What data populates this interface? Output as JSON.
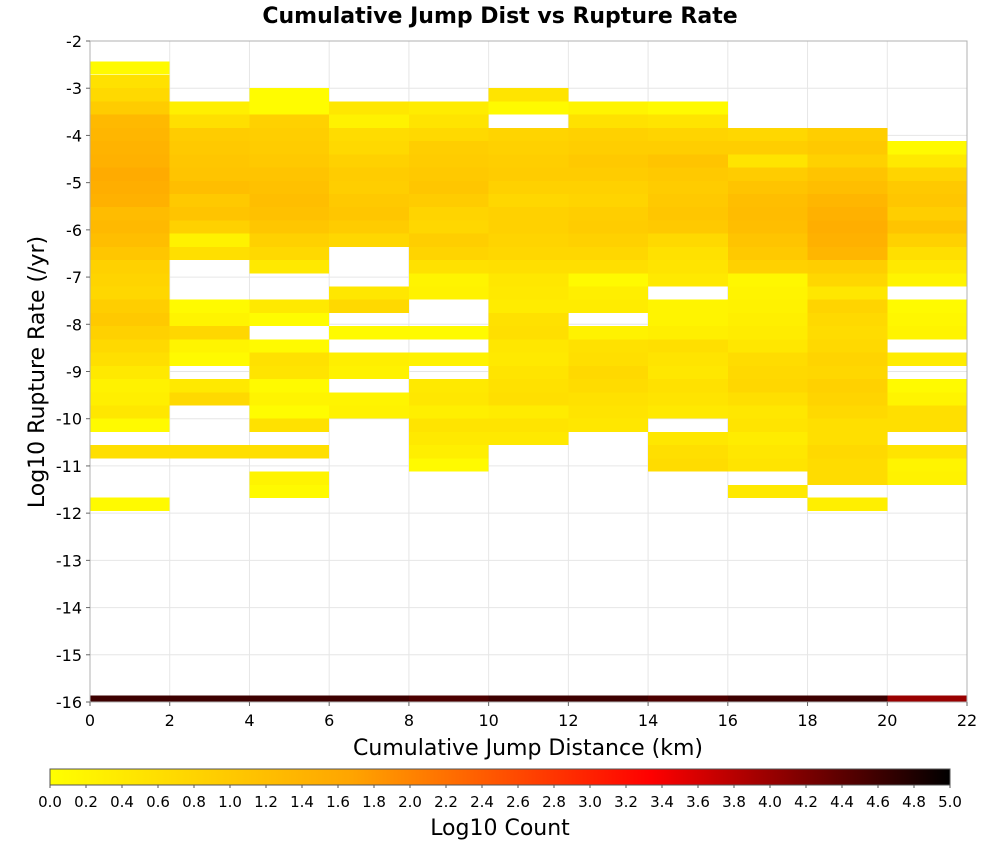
{
  "chart_data": {
    "type": "heatmap",
    "title": "Cumulative Jump Dist vs Rupture Rate",
    "xlabel": "Cumulative Jump Distance (km)",
    "ylabel": "Log10 Rupture Rate (/yr)",
    "xlim": [
      0,
      22
    ],
    "ylim": [
      -16,
      -2
    ],
    "x_ticks": [
      "0",
      "2",
      "4",
      "6",
      "8",
      "10",
      "12",
      "14",
      "16",
      "18",
      "20",
      "22"
    ],
    "y_ticks": [
      "-16",
      "-15",
      "-14",
      "-13",
      "-12",
      "-11",
      "-10",
      "-9",
      "-8",
      "-7",
      "-6",
      "-5",
      "-4",
      "-3",
      "-2"
    ],
    "x_bin_width": 2,
    "y_bin_width": 0.28,
    "grid": true,
    "colorbar": {
      "label": "Log10 Count",
      "min": 0.0,
      "max": 5.0,
      "ticks": [
        "0.0",
        "0.2",
        "0.4",
        "0.6",
        "0.8",
        "1.0",
        "1.2",
        "1.4",
        "1.6",
        "1.8",
        "2.0",
        "2.2",
        "2.4",
        "2.6",
        "2.8",
        "3.0",
        "3.2",
        "3.4",
        "3.6",
        "3.8",
        "4.0",
        "4.2",
        "4.4",
        "4.6",
        "4.8",
        "5.0"
      ],
      "colors": [
        "#ffff00",
        "#ffa500",
        "#ff0000",
        "#000000"
      ]
    },
    "columns": [
      {
        "x0": 0,
        "cells": [
          [
            -2.57,
            0.1
          ],
          [
            -2.86,
            0.55
          ],
          [
            -3.14,
            0.7
          ],
          [
            -3.42,
            0.95
          ],
          [
            -3.7,
            1.3
          ],
          [
            -3.98,
            1.35
          ],
          [
            -4.26,
            1.4
          ],
          [
            -4.54,
            1.45
          ],
          [
            -4.82,
            1.55
          ],
          [
            -5.1,
            1.5
          ],
          [
            -5.38,
            1.45
          ],
          [
            -5.66,
            1.25
          ],
          [
            -5.94,
            1.3
          ],
          [
            -6.22,
            1.2
          ],
          [
            -6.5,
            1.05
          ],
          [
            -6.78,
            0.85
          ],
          [
            -7.06,
            0.8
          ],
          [
            -7.34,
            0.75
          ],
          [
            -7.62,
            0.9
          ],
          [
            -7.9,
            1.0
          ],
          [
            -8.18,
            0.85
          ],
          [
            -8.46,
            0.7
          ],
          [
            -8.74,
            0.6
          ],
          [
            -9.02,
            0.4
          ],
          [
            -9.3,
            0.25
          ],
          [
            -9.58,
            0.3
          ],
          [
            -9.86,
            0.45
          ],
          [
            -10.14,
            0.1
          ],
          [
            -10.7,
            0.6
          ],
          [
            -11.81,
            0.1
          ]
        ]
      },
      {
        "x0": 2,
        "cells": [
          [
            -3.42,
            0.3
          ],
          [
            -3.7,
            0.6
          ],
          [
            -3.98,
            0.95
          ],
          [
            -4.26,
            1.0
          ],
          [
            -4.54,
            1.05
          ],
          [
            -4.82,
            1.1
          ],
          [
            -5.1,
            1.2
          ],
          [
            -5.38,
            1.0
          ],
          [
            -5.66,
            1.1
          ],
          [
            -5.94,
            0.85
          ],
          [
            -6.22,
            0.25
          ],
          [
            -6.5,
            0.6
          ],
          [
            -7.62,
            0.1
          ],
          [
            -7.9,
            0.2
          ],
          [
            -8.18,
            0.75
          ],
          [
            -8.46,
            0.2
          ],
          [
            -8.74,
            0.1
          ],
          [
            -9.3,
            0.4
          ],
          [
            -9.58,
            0.7
          ],
          [
            -10.7,
            0.6
          ]
        ]
      },
      {
        "x0": 4,
        "cells": [
          [
            -3.14,
            0.05
          ],
          [
            -3.42,
            0.05
          ],
          [
            -3.7,
            0.85
          ],
          [
            -3.98,
            0.9
          ],
          [
            -4.26,
            0.95
          ],
          [
            -4.54,
            1.0
          ],
          [
            -4.82,
            1.1
          ],
          [
            -5.1,
            1.15
          ],
          [
            -5.38,
            1.2
          ],
          [
            -5.66,
            1.15
          ],
          [
            -5.94,
            1.05
          ],
          [
            -6.22,
            0.85
          ],
          [
            -6.5,
            0.7
          ],
          [
            -6.78,
            0.4
          ],
          [
            -7.62,
            0.4
          ],
          [
            -7.9,
            0.05
          ],
          [
            -8.46,
            0.1
          ],
          [
            -8.74,
            0.55
          ],
          [
            -9.02,
            0.5
          ],
          [
            -9.3,
            0.1
          ],
          [
            -9.58,
            0.2
          ],
          [
            -9.86,
            0.05
          ],
          [
            -10.14,
            0.55
          ],
          [
            -10.7,
            0.6
          ],
          [
            -11.26,
            0.2
          ],
          [
            -11.54,
            0.1
          ]
        ]
      },
      {
        "x0": 6,
        "cells": [
          [
            -3.42,
            0.45
          ],
          [
            -3.7,
            0.25
          ],
          [
            -3.98,
            0.65
          ],
          [
            -4.26,
            0.7
          ],
          [
            -4.54,
            0.85
          ],
          [
            -4.82,
            0.95
          ],
          [
            -5.1,
            0.9
          ],
          [
            -5.38,
            1.0
          ],
          [
            -5.66,
            1.05
          ],
          [
            -5.94,
            0.95
          ],
          [
            -6.22,
            0.75
          ],
          [
            -7.34,
            0.45
          ],
          [
            -7.62,
            0.7
          ],
          [
            -8.18,
            0.1
          ],
          [
            -8.74,
            0.3
          ],
          [
            -9.02,
            0.25
          ],
          [
            -9.58,
            0.2
          ],
          [
            -9.86,
            0.25
          ]
        ]
      },
      {
        "x0": 8,
        "cells": [
          [
            -3.42,
            0.35
          ],
          [
            -3.7,
            0.5
          ],
          [
            -3.98,
            0.7
          ],
          [
            -4.26,
            0.9
          ],
          [
            -4.54,
            0.95
          ],
          [
            -4.82,
            1.0
          ],
          [
            -5.1,
            1.05
          ],
          [
            -5.38,
            0.95
          ],
          [
            -5.66,
            0.8
          ],
          [
            -5.94,
            0.75
          ],
          [
            -6.22,
            0.9
          ],
          [
            -6.5,
            0.8
          ],
          [
            -6.78,
            0.55
          ],
          [
            -7.06,
            0.2
          ],
          [
            -7.34,
            0.25
          ],
          [
            -8.18,
            0.1
          ],
          [
            -8.74,
            0.25
          ],
          [
            -9.3,
            0.4
          ],
          [
            -9.58,
            0.45
          ],
          [
            -9.86,
            0.3
          ],
          [
            -10.14,
            0.5
          ],
          [
            -10.42,
            0.4
          ],
          [
            -10.7,
            0.3
          ],
          [
            -10.98,
            0.1
          ]
        ]
      },
      {
        "x0": 10,
        "cells": [
          [
            -3.14,
            0.5
          ],
          [
            -3.42,
            0.1
          ],
          [
            -3.98,
            0.8
          ],
          [
            -4.26,
            0.85
          ],
          [
            -4.54,
            0.9
          ],
          [
            -4.82,
            0.95
          ],
          [
            -5.1,
            0.85
          ],
          [
            -5.38,
            0.75
          ],
          [
            -5.66,
            0.85
          ],
          [
            -5.94,
            0.85
          ],
          [
            -6.22,
            0.8
          ],
          [
            -6.5,
            0.75
          ],
          [
            -6.78,
            0.6
          ],
          [
            -7.06,
            0.45
          ],
          [
            -7.34,
            0.4
          ],
          [
            -7.62,
            0.35
          ],
          [
            -7.9,
            0.55
          ],
          [
            -8.18,
            0.6
          ],
          [
            -8.46,
            0.45
          ],
          [
            -8.74,
            0.4
          ],
          [
            -9.02,
            0.5
          ],
          [
            -9.3,
            0.55
          ],
          [
            -9.58,
            0.6
          ],
          [
            -9.86,
            0.35
          ],
          [
            -10.14,
            0.5
          ],
          [
            -10.42,
            0.4
          ]
        ]
      },
      {
        "x0": 12,
        "cells": [
          [
            -3.42,
            0.2
          ],
          [
            -3.7,
            0.55
          ],
          [
            -3.98,
            0.85
          ],
          [
            -4.26,
            0.9
          ],
          [
            -4.54,
            1.0
          ],
          [
            -4.82,
            0.95
          ],
          [
            -5.1,
            0.85
          ],
          [
            -5.38,
            0.8
          ],
          [
            -5.66,
            0.9
          ],
          [
            -5.94,
            0.95
          ],
          [
            -6.22,
            0.85
          ],
          [
            -6.5,
            0.75
          ],
          [
            -6.78,
            0.6
          ],
          [
            -7.06,
            0.1
          ],
          [
            -7.34,
            0.3
          ],
          [
            -7.62,
            0.35
          ],
          [
            -8.18,
            0.25
          ],
          [
            -8.46,
            0.55
          ],
          [
            -8.74,
            0.6
          ],
          [
            -9.02,
            0.7
          ],
          [
            -9.3,
            0.65
          ],
          [
            -9.58,
            0.55
          ],
          [
            -9.86,
            0.5
          ],
          [
            -10.14,
            0.45
          ]
        ]
      },
      {
        "x0": 14,
        "cells": [
          [
            -3.42,
            0.1
          ],
          [
            -3.7,
            0.5
          ],
          [
            -3.98,
            0.8
          ],
          [
            -4.26,
            0.9
          ],
          [
            -4.54,
            1.1
          ],
          [
            -4.82,
            1.0
          ],
          [
            -5.1,
            0.95
          ],
          [
            -5.38,
            1.0
          ],
          [
            -5.66,
            1.05
          ],
          [
            -5.94,
            1.0
          ],
          [
            -6.22,
            0.7
          ],
          [
            -6.5,
            0.55
          ],
          [
            -6.78,
            0.5
          ],
          [
            -7.06,
            0.4
          ],
          [
            -7.62,
            0.2
          ],
          [
            -7.9,
            0.2
          ],
          [
            -8.18,
            0.3
          ],
          [
            -8.46,
            0.6
          ],
          [
            -8.74,
            0.5
          ],
          [
            -9.02,
            0.45
          ],
          [
            -9.3,
            0.55
          ],
          [
            -9.58,
            0.5
          ],
          [
            -9.86,
            0.4
          ],
          [
            -10.42,
            0.45
          ],
          [
            -10.7,
            0.6
          ],
          [
            -10.98,
            0.65
          ]
        ]
      },
      {
        "x0": 16,
        "cells": [
          [
            -3.98,
            0.75
          ],
          [
            -4.26,
            0.9
          ],
          [
            -4.54,
            0.5
          ],
          [
            -4.82,
            0.95
          ],
          [
            -5.1,
            1.1
          ],
          [
            -5.38,
            1.2
          ],
          [
            -5.66,
            1.25
          ],
          [
            -5.94,
            1.2
          ],
          [
            -6.22,
            1.1
          ],
          [
            -6.5,
            1.0
          ],
          [
            -6.78,
            0.85
          ],
          [
            -7.06,
            0.15
          ],
          [
            -7.34,
            0.2
          ],
          [
            -7.62,
            0.25
          ],
          [
            -7.9,
            0.3
          ],
          [
            -8.18,
            0.35
          ],
          [
            -8.46,
            0.45
          ],
          [
            -8.74,
            0.65
          ],
          [
            -9.02,
            0.7
          ],
          [
            -9.3,
            0.75
          ],
          [
            -9.58,
            0.6
          ],
          [
            -9.86,
            0.45
          ],
          [
            -10.14,
            0.5
          ],
          [
            -10.42,
            0.35
          ],
          [
            -10.7,
            0.45
          ],
          [
            -10.98,
            0.5
          ],
          [
            -11.54,
            0.4
          ]
        ]
      },
      {
        "x0": 18,
        "cells": [
          [
            -3.98,
            0.9
          ],
          [
            -4.26,
            1.0
          ],
          [
            -4.54,
            0.85
          ],
          [
            -4.82,
            1.1
          ],
          [
            -5.1,
            1.2
          ],
          [
            -5.38,
            1.35
          ],
          [
            -5.66,
            1.45
          ],
          [
            -5.94,
            1.5
          ],
          [
            -6.22,
            1.45
          ],
          [
            -6.5,
            1.35
          ],
          [
            -6.78,
            0.9
          ],
          [
            -7.06,
            0.75
          ],
          [
            -7.34,
            0.45
          ],
          [
            -7.62,
            0.8
          ],
          [
            -7.9,
            0.7
          ],
          [
            -8.18,
            0.65
          ],
          [
            -8.46,
            0.7
          ],
          [
            -8.74,
            0.8
          ],
          [
            -9.02,
            0.75
          ],
          [
            -9.3,
            0.85
          ],
          [
            -9.58,
            0.8
          ],
          [
            -9.86,
            0.7
          ],
          [
            -10.14,
            0.6
          ],
          [
            -10.42,
            0.6
          ],
          [
            -10.7,
            0.7
          ],
          [
            -10.98,
            0.65
          ],
          [
            -11.26,
            0.65
          ],
          [
            -11.81,
            0.3
          ]
        ]
      },
      {
        "x0": 20,
        "cells": [
          [
            -4.26,
            0.1
          ],
          [
            -4.54,
            0.4
          ],
          [
            -4.82,
            0.8
          ],
          [
            -5.1,
            1.0
          ],
          [
            -5.38,
            1.05
          ],
          [
            -5.66,
            0.9
          ],
          [
            -5.94,
            1.1
          ],
          [
            -6.22,
            0.85
          ],
          [
            -6.5,
            0.6
          ],
          [
            -6.78,
            0.4
          ],
          [
            -7.06,
            0.2
          ],
          [
            -7.62,
            0.1
          ],
          [
            -7.9,
            0.15
          ],
          [
            -8.18,
            0.2
          ],
          [
            -8.74,
            0.35
          ],
          [
            -9.3,
            0.1
          ],
          [
            -9.58,
            0.2
          ],
          [
            -9.86,
            0.6
          ],
          [
            -10.14,
            0.6
          ],
          [
            -10.7,
            0.5
          ],
          [
            -10.98,
            0.2
          ],
          [
            -11.26,
            0.25
          ]
        ]
      }
    ],
    "floor_bin": {
      "y": -16,
      "note": "",
      "values": [
        4.6,
        4.6,
        4.6,
        4.6,
        4.5,
        4.6,
        4.6,
        4.5,
        4.6,
        4.6,
        4.0
      ]
    }
  }
}
